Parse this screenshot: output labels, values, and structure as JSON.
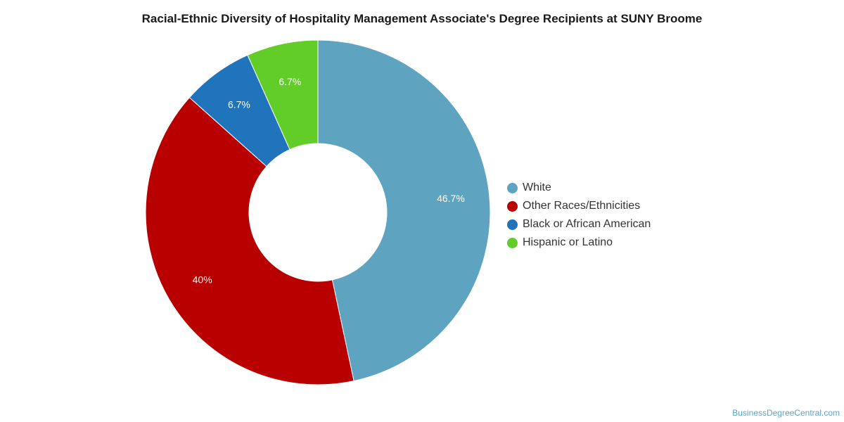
{
  "chart_data": {
    "type": "pie",
    "variant": "donut",
    "title": "Racial-Ethnic Diversity of Hospitality Management Associate's Degree Recipients at SUNY Broome",
    "slices": [
      {
        "label": "White",
        "value": 46.7,
        "display": "46.7%",
        "color": "#5ea3c0"
      },
      {
        "label": "Other Races/Ethnicities",
        "value": 40.0,
        "display": "40%",
        "color": "#b80000"
      },
      {
        "label": "Black or African American",
        "value": 6.7,
        "display": "6.7%",
        "color": "#1f74bb"
      },
      {
        "label": "Hispanic or Latino",
        "value": 6.7,
        "display": "6.7%",
        "color": "#62cc28"
      }
    ],
    "legend_position": "right"
  },
  "watermark": "BusinessDegreeCentral.com"
}
